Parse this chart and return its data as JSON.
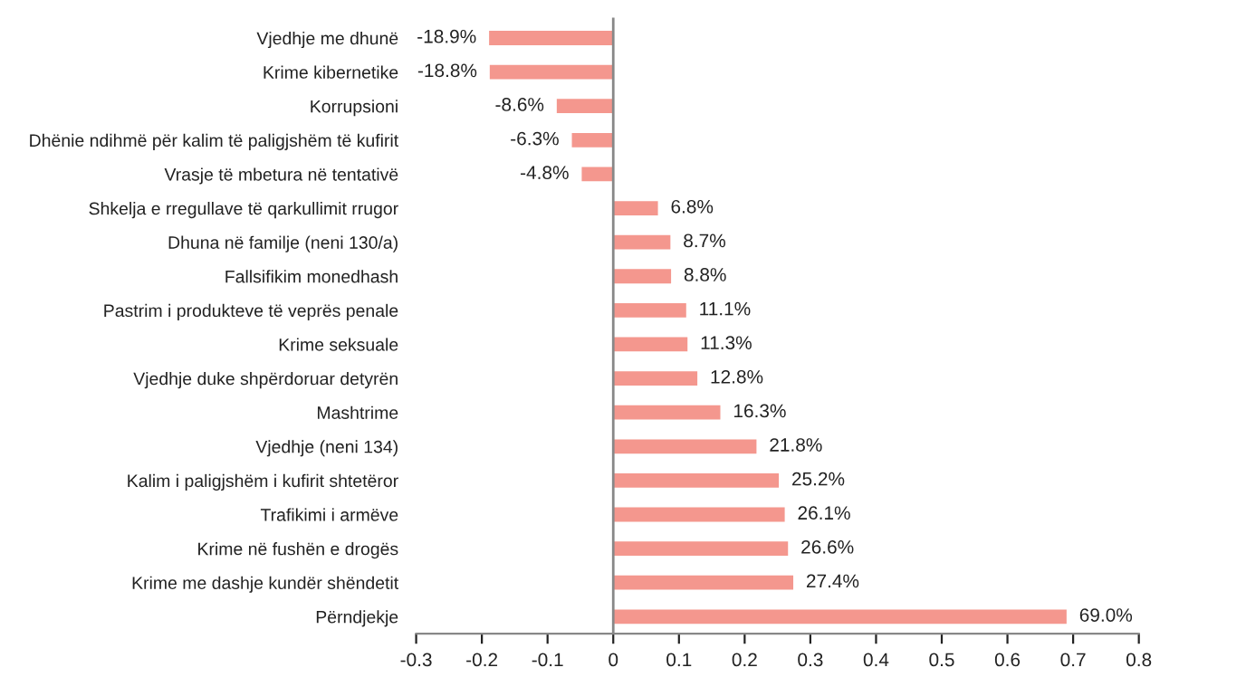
{
  "chart_data": {
    "type": "bar",
    "orientation": "horizontal",
    "categories": [
      "Vjedhje me dhunë",
      "Krime kibernetike",
      "Korrupsioni",
      "Dhënie ndihmë për kalim të paligjshëm të kufirit",
      "Vrasje të mbetura në tentativë",
      "Shkelja e rregullave të qarkullimit rrugor",
      "Dhuna në familje (neni 130/a)",
      "Fallsifikim monedhash",
      "Pastrim i produkteve të veprës penale",
      "Krime seksuale",
      "Vjedhje duke shpërdoruar detyrën",
      "Mashtrime",
      "Vjedhje (neni 134)",
      "Kalim i paligjshëm i kufirit shtetëror",
      "Trafikimi i armëve",
      "Krime në fushën e drogës",
      "Krime me dashje kundër shëndetit",
      "Përndjekje"
    ],
    "values": [
      -0.189,
      -0.188,
      -0.086,
      -0.063,
      -0.048,
      0.068,
      0.087,
      0.088,
      0.111,
      0.113,
      0.128,
      0.163,
      0.218,
      0.252,
      0.261,
      0.266,
      0.274,
      0.69
    ],
    "value_labels": [
      "-18.9%",
      "-18.8%",
      "-8.6%",
      "-6.3%",
      "-4.8%",
      "6.8%",
      "8.7%",
      "8.8%",
      "11.1%",
      "11.3%",
      "12.8%",
      "16.3%",
      "21.8%",
      "25.2%",
      "26.1%",
      "26.6%",
      "27.4%",
      "69.0%"
    ],
    "color": "#f4978e",
    "xlim": [
      -0.3,
      0.8
    ],
    "xticks": [
      -0.3,
      -0.2,
      -0.1,
      0,
      0.1,
      0.2,
      0.3,
      0.4,
      0.5,
      0.6,
      0.7,
      0.8
    ],
    "ref_lines": [
      {
        "axis": "x",
        "value": 0,
        "color": "#888888"
      }
    ],
    "grid": false,
    "legend": false
  }
}
